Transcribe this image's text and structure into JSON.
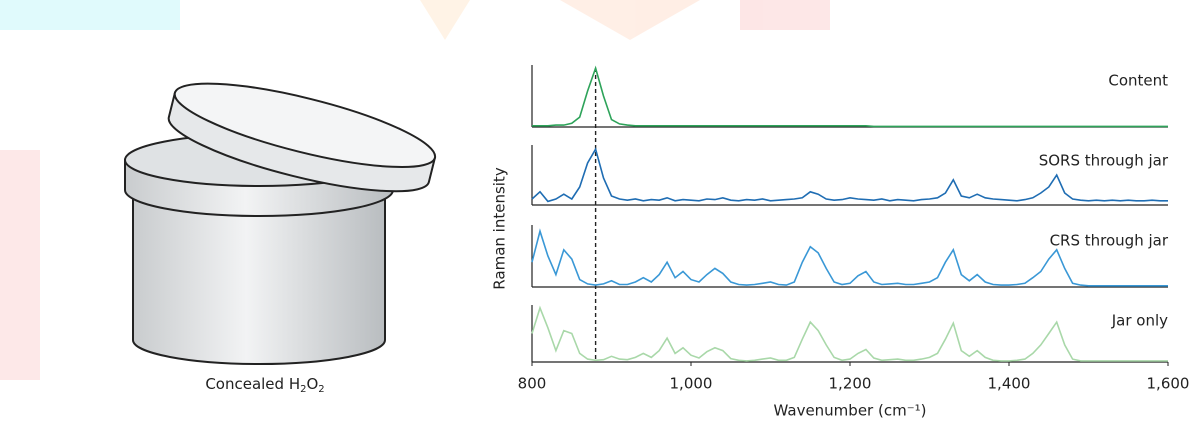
{
  "illustration": {
    "caption": [
      "Concealed H",
      "2",
      "O",
      "2"
    ]
  },
  "chart_data": {
    "type": "line",
    "y_label": "Raman intensity",
    "x_label": "Wavenumber (cm⁻¹)",
    "xlim": [
      800,
      1600
    ],
    "xticks": [
      800,
      {
        "value": 1000,
        "label": "1,000"
      },
      {
        "value": 1200,
        "label": "1,200"
      },
      {
        "value": 1400,
        "label": "1,400"
      },
      {
        "value": 1600,
        "label": "1,600"
      }
    ],
    "ylim": [
      0,
      1
    ],
    "grid": false,
    "reference_line_x": 880,
    "x": [
      800,
      810,
      820,
      830,
      840,
      850,
      860,
      870,
      880,
      890,
      900,
      910,
      920,
      930,
      940,
      950,
      960,
      970,
      980,
      990,
      1000,
      1010,
      1020,
      1030,
      1040,
      1050,
      1060,
      1070,
      1080,
      1090,
      1100,
      1110,
      1120,
      1130,
      1140,
      1150,
      1160,
      1170,
      1180,
      1190,
      1200,
      1210,
      1220,
      1230,
      1240,
      1250,
      1260,
      1270,
      1280,
      1290,
      1300,
      1310,
      1320,
      1330,
      1340,
      1350,
      1360,
      1370,
      1380,
      1390,
      1400,
      1410,
      1420,
      1430,
      1440,
      1450,
      1460,
      1470,
      1480,
      1490,
      1500,
      1510,
      1520,
      1530,
      1540,
      1550,
      1560,
      1570,
      1580,
      1590,
      1600
    ],
    "series": [
      {
        "name": "Content",
        "color": "#2ea35a",
        "values": [
          0.02,
          0.02,
          0.02,
          0.03,
          0.03,
          0.06,
          0.16,
          0.58,
          0.95,
          0.5,
          0.12,
          0.05,
          0.03,
          0.02,
          0.02,
          0.02,
          0.02,
          0.02,
          0.02,
          0.02,
          0.02,
          0.02,
          0.02,
          0.02,
          0.02,
          0.02,
          0.02,
          0.02,
          0.02,
          0.02,
          0.02,
          0.02,
          0.02,
          0.02,
          0.02,
          0.02,
          0.02,
          0.02,
          0.02,
          0.02,
          0.02,
          0.02,
          0.02,
          0.01,
          0.01,
          0.01,
          0.01,
          0.01,
          0.01,
          0.01,
          0.01,
          0.01,
          0.01,
          0.01,
          0.01,
          0.01,
          0.01,
          0.01,
          0.01,
          0.01,
          0.01,
          0.01,
          0.01,
          0.01,
          0.01,
          0.01,
          0.01,
          0.01,
          0.01,
          0.01,
          0.01,
          0.01,
          0.01,
          0.01,
          0.01,
          0.01,
          0.01,
          0.01,
          0.01,
          0.01,
          0.01
        ]
      },
      {
        "name": "SORS through jar",
        "color": "#1f6db3",
        "values": [
          0.1,
          0.22,
          0.06,
          0.1,
          0.18,
          0.1,
          0.3,
          0.7,
          0.93,
          0.45,
          0.15,
          0.1,
          0.08,
          0.1,
          0.07,
          0.09,
          0.08,
          0.12,
          0.07,
          0.09,
          0.08,
          0.07,
          0.1,
          0.09,
          0.12,
          0.08,
          0.07,
          0.09,
          0.08,
          0.1,
          0.07,
          0.08,
          0.09,
          0.1,
          0.12,
          0.22,
          0.18,
          0.1,
          0.08,
          0.09,
          0.12,
          0.1,
          0.09,
          0.08,
          0.1,
          0.07,
          0.09,
          0.08,
          0.07,
          0.09,
          0.1,
          0.12,
          0.2,
          0.42,
          0.15,
          0.12,
          0.18,
          0.12,
          0.1,
          0.09,
          0.08,
          0.07,
          0.09,
          0.12,
          0.2,
          0.3,
          0.5,
          0.2,
          0.1,
          0.08,
          0.07,
          0.08,
          0.07,
          0.08,
          0.07,
          0.08,
          0.07,
          0.07,
          0.08,
          0.07,
          0.07
        ]
      },
      {
        "name": "CRS through jar",
        "color": "#3a98d6",
        "values": [
          0.4,
          0.9,
          0.5,
          0.2,
          0.6,
          0.45,
          0.12,
          0.05,
          0.03,
          0.05,
          0.1,
          0.04,
          0.04,
          0.08,
          0.15,
          0.08,
          0.2,
          0.4,
          0.15,
          0.25,
          0.12,
          0.08,
          0.2,
          0.3,
          0.22,
          0.08,
          0.04,
          0.03,
          0.04,
          0.06,
          0.08,
          0.04,
          0.03,
          0.08,
          0.4,
          0.65,
          0.55,
          0.3,
          0.08,
          0.04,
          0.06,
          0.18,
          0.25,
          0.08,
          0.04,
          0.05,
          0.06,
          0.04,
          0.04,
          0.06,
          0.08,
          0.15,
          0.4,
          0.6,
          0.2,
          0.1,
          0.2,
          0.08,
          0.04,
          0.03,
          0.03,
          0.04,
          0.06,
          0.15,
          0.25,
          0.45,
          0.6,
          0.3,
          0.06,
          0.03,
          0.02,
          0.02,
          0.02,
          0.02,
          0.02,
          0.02,
          0.02,
          0.02,
          0.02,
          0.02,
          0.02
        ]
      },
      {
        "name": "Jar only",
        "color": "#a9d8a9",
        "values": [
          0.5,
          0.95,
          0.6,
          0.2,
          0.55,
          0.5,
          0.15,
          0.05,
          0.03,
          0.04,
          0.1,
          0.05,
          0.04,
          0.08,
          0.15,
          0.08,
          0.2,
          0.42,
          0.15,
          0.25,
          0.12,
          0.07,
          0.18,
          0.25,
          0.2,
          0.06,
          0.03,
          0.02,
          0.03,
          0.05,
          0.07,
          0.03,
          0.03,
          0.08,
          0.4,
          0.7,
          0.55,
          0.3,
          0.08,
          0.03,
          0.05,
          0.15,
          0.22,
          0.07,
          0.03,
          0.04,
          0.05,
          0.03,
          0.03,
          0.05,
          0.08,
          0.15,
          0.4,
          0.68,
          0.2,
          0.1,
          0.2,
          0.08,
          0.03,
          0.02,
          0.02,
          0.03,
          0.05,
          0.15,
          0.3,
          0.5,
          0.7,
          0.3,
          0.05,
          0.02,
          0.02,
          0.02,
          0.02,
          0.02,
          0.02,
          0.02,
          0.02,
          0.02,
          0.02,
          0.02,
          0.02
        ]
      }
    ]
  }
}
